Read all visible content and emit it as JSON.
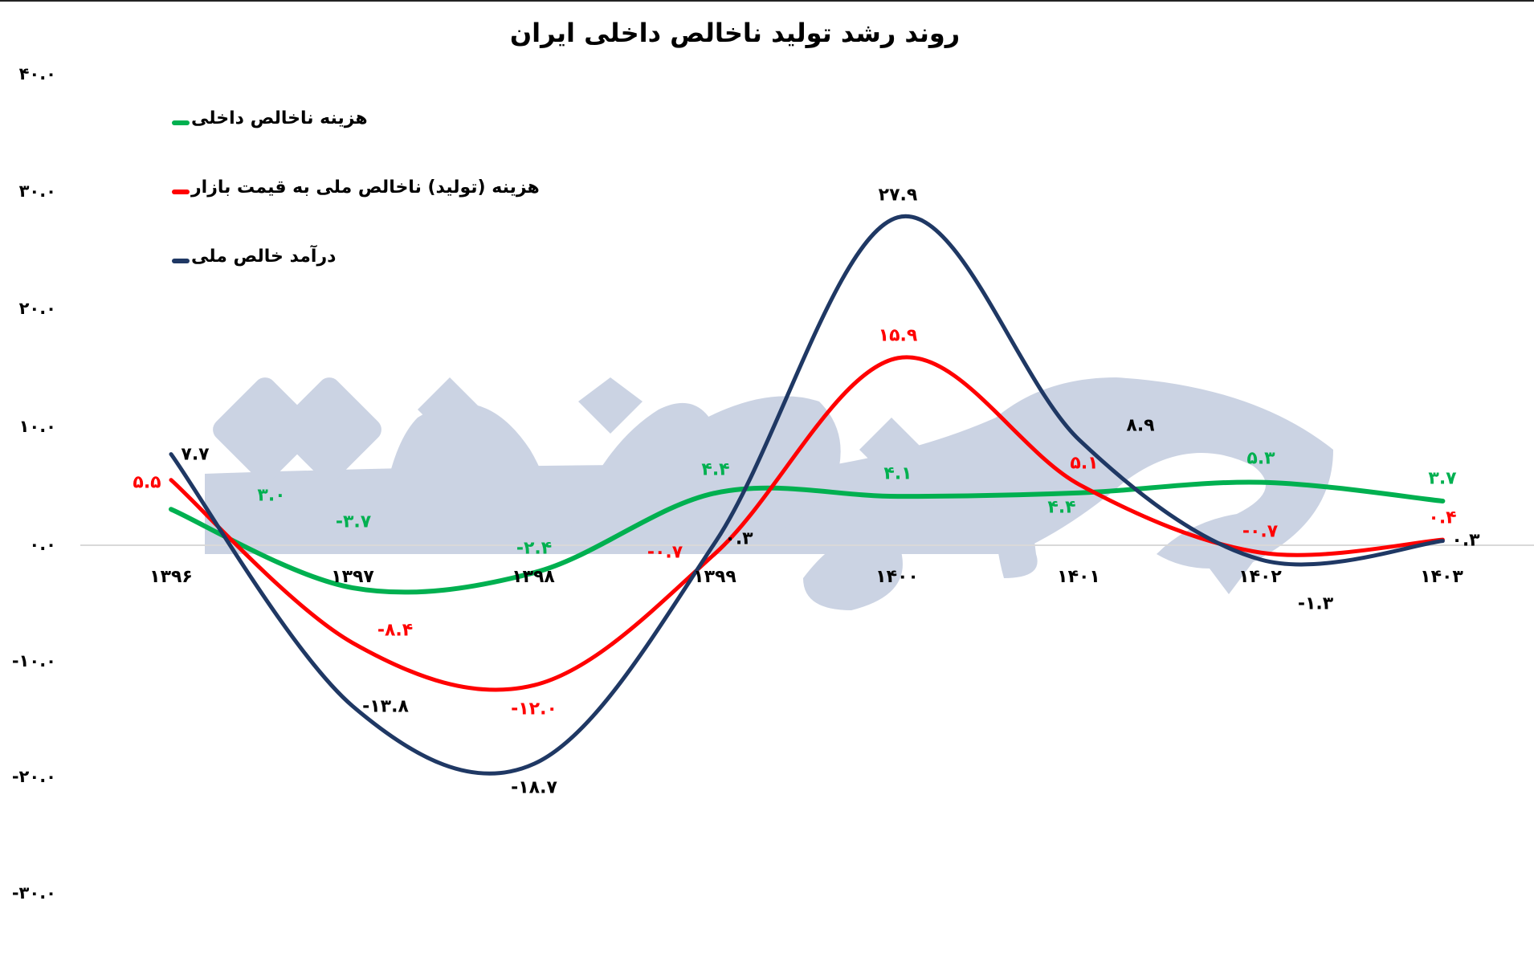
{
  "title": "روند رشد تولید ناخالص داخلی ایران",
  "watermark": "جهان صنعت",
  "y_axis": {
    "ticks": [
      {
        "value": 40,
        "label": "۴۰.۰"
      },
      {
        "value": 30,
        "label": "۳۰.۰"
      },
      {
        "value": 20,
        "label": "۲۰.۰"
      },
      {
        "value": 10,
        "label": "۱۰.۰"
      },
      {
        "value": 0,
        "label": "۰.۰"
      },
      {
        "value": -10,
        "label": "-۱۰.۰"
      },
      {
        "value": -20,
        "label": "-۲۰.۰"
      },
      {
        "value": -30,
        "label": "-۳۰.۰"
      }
    ]
  },
  "x_axis": {
    "labels": [
      "۱۳۹۶",
      "۱۳۹۷",
      "۱۳۹۸",
      "۱۳۹۹",
      "۱۴۰۰",
      "۱۴۰۱",
      "۱۴۰۲",
      "۱۴۰۳"
    ]
  },
  "legend": [
    {
      "label": "هزینه ناخالص داخلی",
      "color": "#00B050"
    },
    {
      "label": "هزینه (تولید) ناخالص ملی به قیمت بازار",
      "color": "#FF0000"
    },
    {
      "label": "درآمد خالص ملی",
      "color": "#1F3864"
    }
  ],
  "series_labels": {
    "green": [
      "۳.۰",
      "-۳.۷",
      "-۲.۴",
      "۴.۴",
      "۴.۱",
      "۴.۴",
      "۵.۳",
      "۳.۷"
    ],
    "red": [
      "۵.۵",
      "-۸.۴",
      "-۱۲.۰",
      "-۰.۷",
      "۱۵.۹",
      "۵.۱",
      "-۰.۷",
      "۰.۴"
    ],
    "blue": [
      "۷.۷",
      "-۱۳.۸",
      "-۱۸.۷",
      "۰.۳",
      "۲۷.۹",
      "۸.۹",
      "-۱.۳",
      "۰.۳"
    ]
  },
  "colors": {
    "green": "#00B050",
    "red": "#FF0000",
    "blue": "#1F3864",
    "watermark": "#CBD3E3",
    "gridline": "#D9D9D9"
  },
  "chart_data": {
    "type": "line",
    "title": "روند رشد تولید ناخالص داخلی ایران",
    "xlabel": "",
    "ylabel": "",
    "ylim": [
      -30,
      40
    ],
    "grid": false,
    "legend_position": "top-left",
    "smooth": true,
    "categories": [
      "1396",
      "1397",
      "1398",
      "1399",
      "1400",
      "1401",
      "1402",
      "1403"
    ],
    "series": [
      {
        "name": "هزینه ناخالص داخلی",
        "color": "#00B050",
        "values": [
          3.0,
          -3.7,
          -2.4,
          4.4,
          4.1,
          4.4,
          5.3,
          3.7
        ]
      },
      {
        "name": "هزینه (تولید) ناخالص ملی به قیمت بازار",
        "color": "#FF0000",
        "values": [
          5.5,
          -8.4,
          -12.0,
          -0.7,
          15.9,
          5.1,
          -0.7,
          0.4
        ]
      },
      {
        "name": "درآمد خالص ملی",
        "color": "#1F3864",
        "values": [
          7.7,
          -13.8,
          -18.7,
          0.3,
          27.9,
          8.9,
          -1.3,
          0.3
        ]
      }
    ]
  }
}
